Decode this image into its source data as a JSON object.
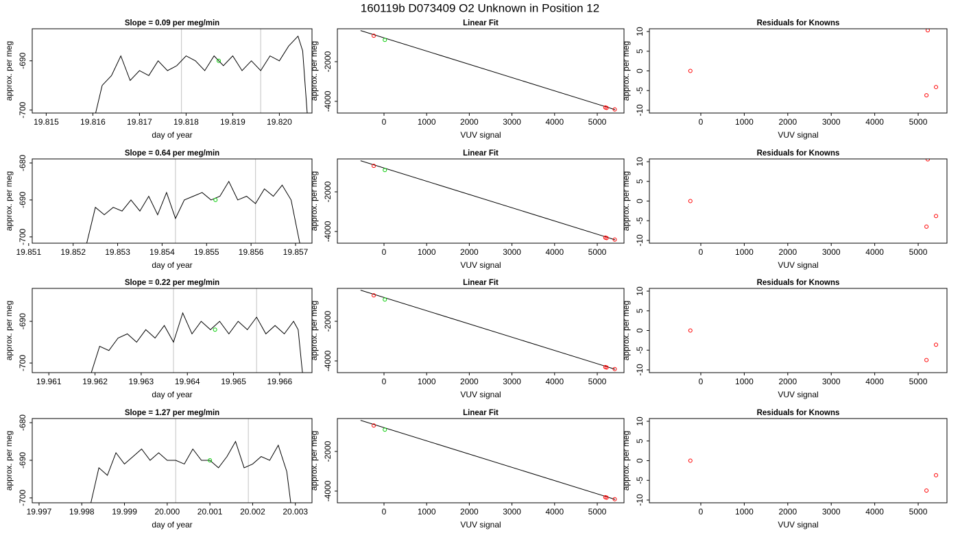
{
  "title": "160119b     D073409   O2 Unknown in Position  12",
  "chart_data": [
    {
      "type": "line",
      "title": "Slope =  0.09  per meg/min",
      "xlabel": "day of year",
      "ylabel": "approx. per meg",
      "xlim": [
        19.8147,
        19.8207
      ],
      "xticks": [
        19.815,
        19.816,
        19.817,
        19.818,
        19.819,
        {
          "value": 19.82,
          "label": "19.820"
        }
      ],
      "ylim": [
        -700.6,
        -683.5
      ],
      "yticks": [
        -700,
        -690
      ],
      "color": "#000000",
      "x": [
        19.81605,
        19.8162,
        19.8164,
        19.8166,
        19.8168,
        19.817,
        19.8172,
        19.8174,
        19.8176,
        19.8178,
        19.818,
        19.8182,
        19.8184,
        19.8186,
        19.8188,
        19.819,
        19.8192,
        19.8194,
        19.8196,
        19.8198,
        19.82,
        19.8202,
        19.8204,
        19.8205,
        19.8206
      ],
      "values": [
        -701,
        -695,
        -693,
        -689,
        -694,
        -692,
        -693,
        -690,
        -692,
        -691,
        -689,
        -690,
        -692,
        -689,
        -691,
        -689,
        -692,
        -690,
        -692,
        -689,
        -690,
        -687,
        -685,
        -688,
        -701
      ],
      "vlines": [
        19.8179,
        19.8196
      ],
      "vline_color": "#cccccc",
      "marker": {
        "x": 19.8187,
        "value": -690,
        "color": "#00cc00"
      }
    },
    {
      "type": "scatter",
      "title": "Linear Fit",
      "xlabel": "VUV signal",
      "ylabel": "approx. per meg",
      "xlim": [
        -1093,
        5627
      ],
      "xticks": [
        0,
        1000,
        2000,
        3000,
        4000,
        5000
      ],
      "ylim": [
        -4590,
        -340
      ],
      "yticks": [
        -4000,
        -2000
      ],
      "series": [
        {
          "color": "#ff0000",
          "x": [
            -240,
            5190,
            5220,
            5410
          ],
          "values": [
            -690,
            -4310,
            -4330,
            -4410
          ]
        },
        {
          "color": "#00cc00",
          "x": [
            20
          ],
          "values": [
            -900
          ]
        }
      ],
      "fit_line": {
        "color": "#000000",
        "x": [
          -550,
          5420
        ],
        "values": [
          -430,
          -4420
        ]
      }
    },
    {
      "type": "scatter",
      "title": "Residuals for Knowns",
      "xlabel": "VUV signal",
      "ylabel": "approx. per meg",
      "xlim": [
        -1183,
        5662
      ],
      "xticks": [
        0,
        1000,
        2000,
        3000,
        4000,
        5000
      ],
      "ylim": [
        -10.7,
        10.7
      ],
      "yticks": [
        -10,
        -5,
        0,
        5,
        10
      ],
      "series": [
        {
          "color": "#ff0000",
          "x": [
            -240,
            5220,
            5190,
            5410
          ],
          "values": [
            0,
            10.3,
            -6.2,
            -4.1
          ]
        }
      ]
    },
    {
      "type": "line",
      "title": "Slope =  0.64  per meg/min",
      "xlabel": "day of year",
      "ylabel": "approx. per meg",
      "xlim": [
        19.85108,
        19.85737
      ],
      "xticks": [
        19.851,
        19.852,
        19.853,
        19.854,
        19.855,
        19.856,
        19.857
      ],
      "ylim": [
        -701.7,
        -678.9
      ],
      "yticks": [
        -700,
        -690,
        -680
      ],
      "color": "#000000",
      "x": [
        19.8523,
        19.8525,
        19.8527,
        19.8529,
        19.8531,
        19.8533,
        19.8535,
        19.8537,
        19.8539,
        19.8541,
        19.8543,
        19.8545,
        19.8547,
        19.8549,
        19.8551,
        19.8553,
        19.8555,
        19.8557,
        19.8559,
        19.8561,
        19.8563,
        19.8565,
        19.8567,
        19.8569,
        19.8571
      ],
      "values": [
        -702,
        -692,
        -694,
        -692,
        -693,
        -690,
        -693,
        -689,
        -694,
        -688,
        -695,
        -690,
        -689,
        -688,
        -690,
        -689,
        -685,
        -690,
        -689,
        -691,
        -687,
        -689,
        -686,
        -690,
        -702
      ],
      "vlines": [
        19.8543,
        19.8561
      ],
      "vline_color": "#cccccc",
      "marker": {
        "x": 19.8552,
        "value": -690,
        "color": "#00cc00"
      }
    },
    {
      "type": "scatter",
      "title": "Linear Fit",
      "xlabel": "VUV signal",
      "ylabel": "approx. per meg",
      "xlim": [
        -1093,
        5627
      ],
      "xticks": [
        0,
        1000,
        2000,
        3000,
        4000,
        5000
      ],
      "ylim": [
        -4590,
        -340
      ],
      "yticks": [
        -4000,
        -2000
      ],
      "series": [
        {
          "color": "#ff0000",
          "x": [
            -240,
            5190,
            5220,
            5410
          ],
          "values": [
            -690,
            -4310,
            -4330,
            -4410
          ]
        },
        {
          "color": "#00cc00",
          "x": [
            20
          ],
          "values": [
            -900
          ]
        }
      ],
      "fit_line": {
        "color": "#000000",
        "x": [
          -550,
          5420
        ],
        "values": [
          -430,
          -4420
        ]
      }
    },
    {
      "type": "scatter",
      "title": "Residuals for Knowns",
      "xlabel": "VUV signal",
      "ylabel": "approx. per meg",
      "xlim": [
        -1183,
        5662
      ],
      "xticks": [
        0,
        1000,
        2000,
        3000,
        4000,
        5000
      ],
      "ylim": [
        -10.7,
        10.7
      ],
      "yticks": [
        -10,
        -5,
        0,
        5,
        10
      ],
      "series": [
        {
          "color": "#ff0000",
          "x": [
            -240,
            5220,
            5190,
            5410
          ],
          "values": [
            0,
            10.6,
            -6.5,
            -3.8
          ]
        }
      ]
    },
    {
      "type": "line",
      "title": "Slope =  0.22  per meg/min",
      "xlabel": "day of year",
      "ylabel": "approx. per meg",
      "xlim": [
        19.96064,
        19.9667
      ],
      "xticks": [
        19.961,
        19.962,
        19.963,
        19.964,
        19.965,
        19.966
      ],
      "ylim": [
        -702.3,
        -682.1
      ],
      "yticks": [
        -700,
        -690
      ],
      "color": "#000000",
      "x": [
        19.9619,
        19.9621,
        19.9623,
        19.9625,
        19.9627,
        19.9629,
        19.9631,
        19.9633,
        19.9635,
        19.9637,
        19.9639,
        19.9641,
        19.9643,
        19.9645,
        19.9647,
        19.9649,
        19.9651,
        19.9653,
        19.9655,
        19.9657,
        19.9659,
        19.9661,
        19.9663,
        19.9664,
        19.9665
      ],
      "values": [
        -703,
        -696,
        -697,
        -694,
        -693,
        -695,
        -692,
        -694,
        -691,
        -695,
        -688,
        -693,
        -690,
        -692,
        -690,
        -693,
        -690,
        -692,
        -689,
        -693,
        -691,
        -693,
        -690,
        -692,
        -703
      ],
      "vlines": [
        19.9637,
        19.9655
      ],
      "vline_color": "#cccccc",
      "marker": {
        "x": 19.9646,
        "value": -692,
        "color": "#00cc00"
      }
    },
    {
      "type": "scatter",
      "title": "Linear Fit",
      "xlabel": "VUV signal",
      "ylabel": "approx. per meg",
      "xlim": [
        -1093,
        5627
      ],
      "xticks": [
        0,
        1000,
        2000,
        3000,
        4000,
        5000
      ],
      "ylim": [
        -4590,
        -340
      ],
      "yticks": [
        -4000,
        -2000
      ],
      "series": [
        {
          "color": "#ff0000",
          "x": [
            -240,
            5190,
            5220,
            5410
          ],
          "values": [
            -690,
            -4310,
            -4330,
            -4410
          ]
        },
        {
          "color": "#00cc00",
          "x": [
            20
          ],
          "values": [
            -900
          ]
        }
      ],
      "fit_line": {
        "color": "#000000",
        "x": [
          -550,
          5420
        ],
        "values": [
          -430,
          -4420
        ]
      }
    },
    {
      "type": "scatter",
      "title": "Residuals for Knowns",
      "xlabel": "VUV signal",
      "ylabel": "approx. per meg",
      "xlim": [
        -1183,
        5662
      ],
      "xticks": [
        0,
        1000,
        2000,
        3000,
        4000,
        5000
      ],
      "ylim": [
        -10.7,
        10.7
      ],
      "yticks": [
        -10,
        -5,
        0,
        5,
        10
      ],
      "series": [
        {
          "color": "#ff0000",
          "x": [
            -240,
            5190,
            5410
          ],
          "values": [
            0,
            -7.5,
            -3.6
          ]
        }
      ]
    },
    {
      "type": "line",
      "title": "Slope =  1.27  per meg/min",
      "xlabel": "day of year",
      "ylabel": "approx. per meg",
      "xlim": [
        19.99684,
        20.00339
      ],
      "xticks": [
        19.997,
        19.998,
        19.999,
        {
          "value": 20,
          "label": "20.000"
        },
        20.001,
        20.002,
        20.003
      ],
      "ylim": [
        -701.3,
        -678.9
      ],
      "yticks": [
        -700,
        -690,
        -680
      ],
      "color": "#000000",
      "x": [
        19.9982,
        19.9984,
        19.9986,
        19.9988,
        19.999,
        19.9992,
        19.9994,
        19.9996,
        19.9998,
        20,
        20.0002,
        20.0004,
        20.0006,
        20.0008,
        20.001,
        20.0012,
        20.0014,
        20.0016,
        20.0018,
        20.002,
        20.0022,
        20.0024,
        20.0026,
        20.0028,
        20.0029
      ],
      "values": [
        -702,
        -692,
        -694,
        -688,
        -691,
        -689,
        -687,
        -690,
        -688,
        -690,
        -690,
        -691,
        -687,
        -690,
        -690,
        -692,
        -689,
        -685,
        -692,
        -691,
        -689,
        -690,
        -686,
        -693,
        -702
      ],
      "vlines": [
        20.0002,
        20.0019
      ],
      "vline_color": "#cccccc",
      "marker": {
        "x": 20.001,
        "value": -690,
        "color": "#00cc00"
      }
    },
    {
      "type": "scatter",
      "title": "Linear Fit",
      "xlabel": "VUV signal",
      "ylabel": "approx. per meg",
      "xlim": [
        -1093,
        5627
      ],
      "xticks": [
        0,
        1000,
        2000,
        3000,
        4000,
        5000
      ],
      "ylim": [
        -4590,
        -340
      ],
      "yticks": [
        -4000,
        -2000
      ],
      "series": [
        {
          "color": "#ff0000",
          "x": [
            -240,
            5190,
            5220,
            5410
          ],
          "values": [
            -690,
            -4310,
            -4330,
            -4410
          ]
        },
        {
          "color": "#00cc00",
          "x": [
            20
          ],
          "values": [
            -900
          ]
        }
      ],
      "fit_line": {
        "color": "#000000",
        "x": [
          -550,
          5420
        ],
        "values": [
          -430,
          -4420
        ]
      }
    },
    {
      "type": "scatter",
      "title": "Residuals for Knowns",
      "xlabel": "VUV signal",
      "ylabel": "approx. per meg",
      "xlim": [
        -1183,
        5662
      ],
      "xticks": [
        0,
        1000,
        2000,
        3000,
        4000,
        5000
      ],
      "ylim": [
        -10.7,
        10.7
      ],
      "yticks": [
        -10,
        -5,
        0,
        5,
        10
      ],
      "series": [
        {
          "color": "#ff0000",
          "x": [
            -240,
            5190,
            5410
          ],
          "values": [
            0,
            -7.6,
            -3.7
          ]
        }
      ]
    }
  ]
}
